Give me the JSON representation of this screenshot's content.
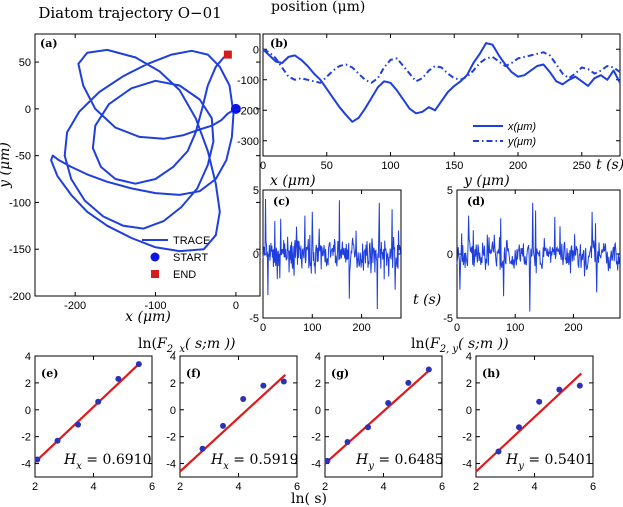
{
  "figure_title": "Diatom trajectory O−01",
  "position_title": "position (μm)",
  "chart_data": [
    {
      "id": "a",
      "panel_label": "(a)",
      "type": "line",
      "xlabel": "x (μm)",
      "ylabel": "y (μm)",
      "xlim": [
        -250,
        30
      ],
      "ylim": [
        -200,
        80
      ],
      "xticks": [
        -200,
        -100,
        0
      ],
      "yticks": [
        -200,
        -150,
        -100,
        -50,
        0,
        50
      ],
      "series": [
        {
          "name": "TRACE",
          "x": [
            0,
            -10,
            -18,
            -30,
            -45,
            -65,
            -90,
            -120,
            -150,
            -175,
            -190,
            -196,
            -185,
            -160,
            -125,
            -95,
            -70,
            -50,
            -35,
            -25,
            -20,
            -25,
            -40,
            -70,
            -100,
            -130,
            -160,
            -185,
            -205,
            -222,
            -230,
            -228,
            -220,
            -205,
            -185,
            -160,
            -130,
            -100,
            -70,
            -45,
            -25,
            -12,
            -5,
            -3,
            -8,
            -20,
            -35,
            -55,
            -80,
            -110,
            -140,
            -170,
            -195,
            -210,
            -213,
            -205,
            -188,
            -165,
            -140,
            -115,
            -90,
            -68,
            -48,
            -35,
            -28,
            -30,
            -45,
            -70,
            -100,
            -130,
            -158,
            -175,
            -178,
            -168,
            -150,
            -125,
            -100,
            -78,
            -60,
            -50,
            -42,
            -35,
            -25,
            -15,
            -10
          ],
          "y": [
            0,
            -5,
            -12,
            -18,
            -22,
            -28,
            -32,
            -30,
            -20,
            0,
            25,
            48,
            60,
            63,
            55,
            40,
            20,
            -10,
            -45,
            -80,
            -110,
            -135,
            -150,
            -152,
            -148,
            -138,
            -125,
            -110,
            -92,
            -72,
            -55,
            -50,
            -55,
            -62,
            -70,
            -78,
            -85,
            -90,
            -92,
            -88,
            -75,
            -55,
            -30,
            -5,
            25,
            45,
            58,
            62,
            58,
            48,
            35,
            18,
            -3,
            -25,
            -50,
            -75,
            -98,
            -115,
            -125,
            -128,
            -120,
            -105,
            -85,
            -60,
            -35,
            -10,
            10,
            25,
            30,
            22,
            5,
            -18,
            -42,
            -62,
            -75,
            -80,
            -75,
            -62,
            -45,
            -25,
            0,
            25,
            45,
            55,
            58
          ]
        }
      ],
      "markers": [
        {
          "label": "START",
          "x": 0,
          "y": 0,
          "shape": "circle",
          "color": "#0a14e6"
        },
        {
          "label": "END",
          "x": -10,
          "y": 58,
          "shape": "square",
          "color": "#d41a1a"
        }
      ],
      "legend": [
        "TRACE",
        "START",
        "END"
      ],
      "legend_position": "bottom-right"
    },
    {
      "id": "b",
      "panel_label": "(b)",
      "type": "line",
      "xlabel": "t (s)",
      "ylabel": "",
      "xlim": [
        0,
        280
      ],
      "ylim": [
        -350,
        50
      ],
      "xticks": [
        0,
        50,
        100,
        150,
        200,
        250
      ],
      "yticks": [
        0,
        -100,
        -200,
        -300
      ],
      "series": [
        {
          "name": "x(μm)",
          "style": "solid",
          "x": [
            0,
            5,
            10,
            15,
            20,
            25,
            30,
            35,
            40,
            45,
            50,
            55,
            60,
            65,
            70,
            75,
            80,
            85,
            90,
            95,
            100,
            105,
            110,
            115,
            120,
            125,
            130,
            135,
            140,
            145,
            150,
            155,
            160,
            165,
            170,
            175,
            180,
            185,
            190,
            195,
            200,
            205,
            210,
            215,
            220,
            225,
            230,
            235,
            240,
            245,
            250,
            255,
            260,
            265,
            270,
            275,
            280
          ],
          "values": [
            0,
            -20,
            -40,
            -45,
            -25,
            -20,
            -35,
            -55,
            -80,
            -100,
            -130,
            -160,
            -190,
            -215,
            -238,
            -225,
            -195,
            -160,
            -125,
            -105,
            -110,
            -135,
            -165,
            -195,
            -210,
            -205,
            -190,
            -200,
            -170,
            -140,
            -120,
            -105,
            -85,
            -45,
            -15,
            20,
            15,
            -20,
            -50,
            -75,
            -90,
            -85,
            -70,
            -55,
            -50,
            -75,
            -105,
            -115,
            -100,
            -90,
            -105,
            -120,
            -95,
            -85,
            -100,
            -70,
            -110
          ]
        },
        {
          "name": "y(μm)",
          "style": "dashdot",
          "x": [
            0,
            5,
            10,
            15,
            20,
            25,
            30,
            35,
            40,
            45,
            50,
            55,
            60,
            65,
            70,
            75,
            80,
            85,
            90,
            95,
            100,
            105,
            110,
            115,
            120,
            125,
            130,
            135,
            140,
            145,
            150,
            155,
            160,
            165,
            170,
            175,
            180,
            185,
            190,
            195,
            200,
            205,
            210,
            215,
            220,
            225,
            230,
            235,
            240,
            245,
            250,
            255,
            260,
            265,
            270,
            275,
            280
          ],
          "values": [
            0,
            -10,
            -30,
            -60,
            -90,
            -100,
            -95,
            -100,
            -105,
            -110,
            -90,
            -70,
            -55,
            -50,
            -60,
            -80,
            -100,
            -110,
            -95,
            -60,
            -35,
            -30,
            -55,
            -80,
            -105,
            -95,
            -70,
            -55,
            -60,
            -80,
            -95,
            -100,
            -90,
            -70,
            -45,
            -30,
            -25,
            -40,
            -55,
            -45,
            -30,
            -25,
            -20,
            -15,
            -10,
            -20,
            -50,
            -80,
            -95,
            -80,
            -60,
            -65,
            -80,
            -70,
            -55,
            -60,
            -75
          ]
        }
      ],
      "legend": [
        "x(μm)",
        "y(μm)"
      ],
      "legend_position": "bottom-right"
    },
    {
      "id": "c",
      "panel_label": "(c)",
      "type": "line",
      "xlabel": "",
      "ylabel": "x (μm)",
      "xlim": [
        0,
        280
      ],
      "ylim": [
        -5,
        5
      ],
      "xticks": [
        0,
        100,
        200
      ],
      "yticks": [
        -5,
        0,
        5
      ],
      "series": [
        {
          "name": "x increments",
          "seed": 7,
          "n": 280,
          "amp": 0.9,
          "spikes": [
            [
              5,
              4.3
            ],
            [
              10,
              -3.2
            ],
            [
              85,
              3.0
            ],
            [
              100,
              3.3
            ],
            [
              155,
              4.2
            ],
            [
              175,
              -3.5
            ],
            [
              232,
              -4.3
            ],
            [
              236,
              4.0
            ],
            [
              262,
              3.5
            ],
            [
              268,
              -2.8
            ]
          ]
        }
      ]
    },
    {
      "id": "d",
      "panel_label": "(d)",
      "type": "line",
      "xlabel": "t (s)",
      "ylabel": "y (μm)",
      "xlim": [
        0,
        280
      ],
      "ylim": [
        -5,
        5
      ],
      "xticks": [
        0,
        100,
        200
      ],
      "yticks": [
        -5,
        0,
        5
      ],
      "series": [
        {
          "name": "y increments",
          "seed": 19,
          "n": 280,
          "amp": 0.9,
          "spikes": [
            [
              5,
              -2.8
            ],
            [
              20,
              3.0
            ],
            [
              75,
              2.8
            ],
            [
              80,
              -3.3
            ],
            [
              125,
              -4.5
            ],
            [
              130,
              4.0
            ],
            [
              135,
              3.4
            ],
            [
              168,
              2.9
            ],
            [
              232,
              3.3
            ],
            [
              240,
              -3.0
            ]
          ]
        }
      ]
    },
    {
      "id": "e",
      "panel_label": "(e)",
      "type": "scatter",
      "xlim": [
        2,
        6
      ],
      "ylim": [
        -5,
        4
      ],
      "xticks": [
        2,
        4,
        6
      ],
      "yticks": [
        -4,
        -2,
        0,
        2,
        4
      ],
      "points_x": [
        2.08,
        2.77,
        3.47,
        4.16,
        4.85,
        5.55
      ],
      "points_y": [
        -3.7,
        -2.3,
        -1.1,
        0.6,
        2.3,
        3.4
      ],
      "fit": {
        "x": [
          2.0,
          5.6
        ],
        "y": [
          -3.9,
          3.5
        ]
      },
      "H_symbol": "H",
      "H_sub": "x",
      "H_value": "0.6910"
    },
    {
      "id": "f",
      "panel_label": "(f)",
      "type": "scatter",
      "xlim": [
        2,
        6
      ],
      "ylim": [
        -5,
        4
      ],
      "xticks": [
        2,
        4,
        6
      ],
      "yticks": [
        -4,
        -2,
        0,
        2,
        4
      ],
      "points_x": [
        2.77,
        3.47,
        4.16,
        4.85,
        5.55
      ],
      "points_y": [
        -2.9,
        -1.2,
        0.8,
        1.8,
        2.1
      ],
      "fit": {
        "x": [
          2.0,
          5.6
        ],
        "y": [
          -4.6,
          2.6
        ]
      },
      "H_symbol": "H",
      "H_sub": "x",
      "H_value": "0.5919"
    },
    {
      "id": "g",
      "panel_label": "(g)",
      "type": "scatter",
      "xlim": [
        2,
        6
      ],
      "ylim": [
        -5,
        4
      ],
      "xticks": [
        2,
        4,
        6
      ],
      "yticks": [
        -4,
        -2,
        0,
        2,
        4
      ],
      "points_x": [
        2.08,
        2.77,
        3.47,
        4.16,
        4.85,
        5.55
      ],
      "points_y": [
        -3.8,
        -2.4,
        -1.3,
        0.5,
        2.0,
        3.0
      ],
      "fit": {
        "x": [
          2.0,
          5.6
        ],
        "y": [
          -4.0,
          3.0
        ]
      },
      "H_symbol": "H",
      "H_sub": "y",
      "H_value": "0.6485"
    },
    {
      "id": "h",
      "panel_label": "(h)",
      "type": "scatter",
      "xlim": [
        2,
        6
      ],
      "ylim": [
        -5,
        4
      ],
      "xticks": [
        2,
        4,
        6
      ],
      "yticks": [
        -4,
        -2,
        0,
        2,
        4
      ],
      "points_x": [
        2.77,
        3.47,
        4.16,
        4.85,
        5.55
      ],
      "points_y": [
        -3.1,
        -1.3,
        0.6,
        1.5,
        1.8
      ],
      "fit": {
        "x": [
          2.0,
          5.6
        ],
        "y": [
          -4.6,
          2.7
        ]
      },
      "H_symbol": "H",
      "H_sub": "y",
      "H_value": "0.5401"
    }
  ],
  "lower_labels": {
    "lnF_x": {
      "pre": "ln(",
      "F": "F",
      "sub": "2, x",
      "post": "( s;m ))"
    },
    "lnF_y": {
      "pre": "ln(",
      "F": "F",
      "sub": "2, y",
      "post": "( s;m ))"
    },
    "lns": "ln( s)"
  },
  "colors": {
    "trace": "#1f3fdc",
    "fit": "#e0191b",
    "dot": "#2a33b8",
    "start": "#0a14e6",
    "end": "#d41a1a"
  }
}
